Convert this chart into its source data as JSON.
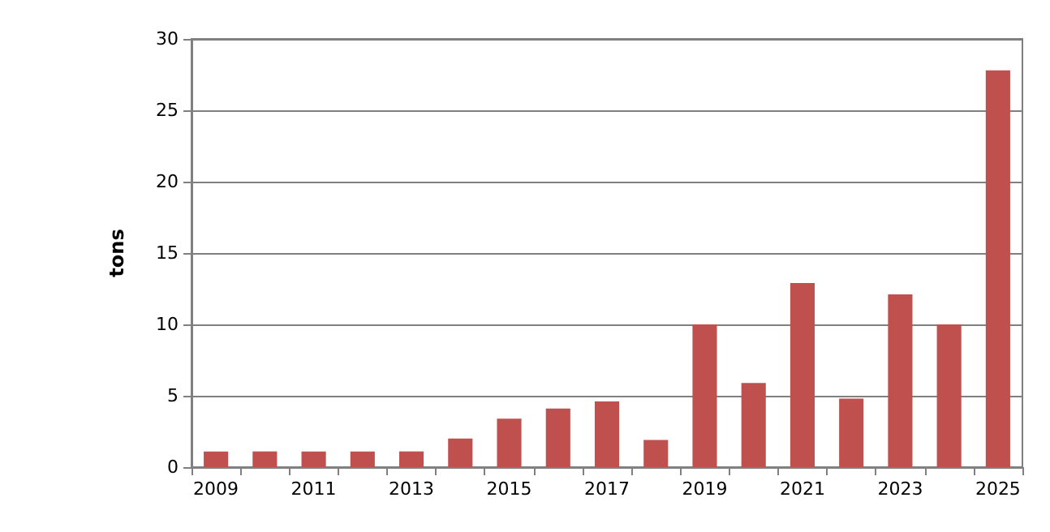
{
  "chart_data": {
    "type": "bar",
    "ylabel": "tons",
    "categories": [
      "2009",
      null,
      "2011",
      null,
      "2013",
      null,
      "2015",
      null,
      "2017",
      null,
      "2019",
      null,
      "2021",
      null,
      "2023",
      null,
      "2025"
    ],
    "series": [
      {
        "color": "#c0504d",
        "values": [
          1.1,
          1.1,
          1.1,
          1.1,
          1.1,
          2,
          3.4,
          4.1,
          4.6,
          1.9,
          10,
          5.9,
          12.9,
          4.8,
          12.1,
          10,
          27.8
        ]
      }
    ],
    "ylim": [
      0,
      30
    ],
    "yticks": [
      0,
      5,
      10,
      15,
      20,
      25,
      30
    ],
    "grid": "y"
  }
}
